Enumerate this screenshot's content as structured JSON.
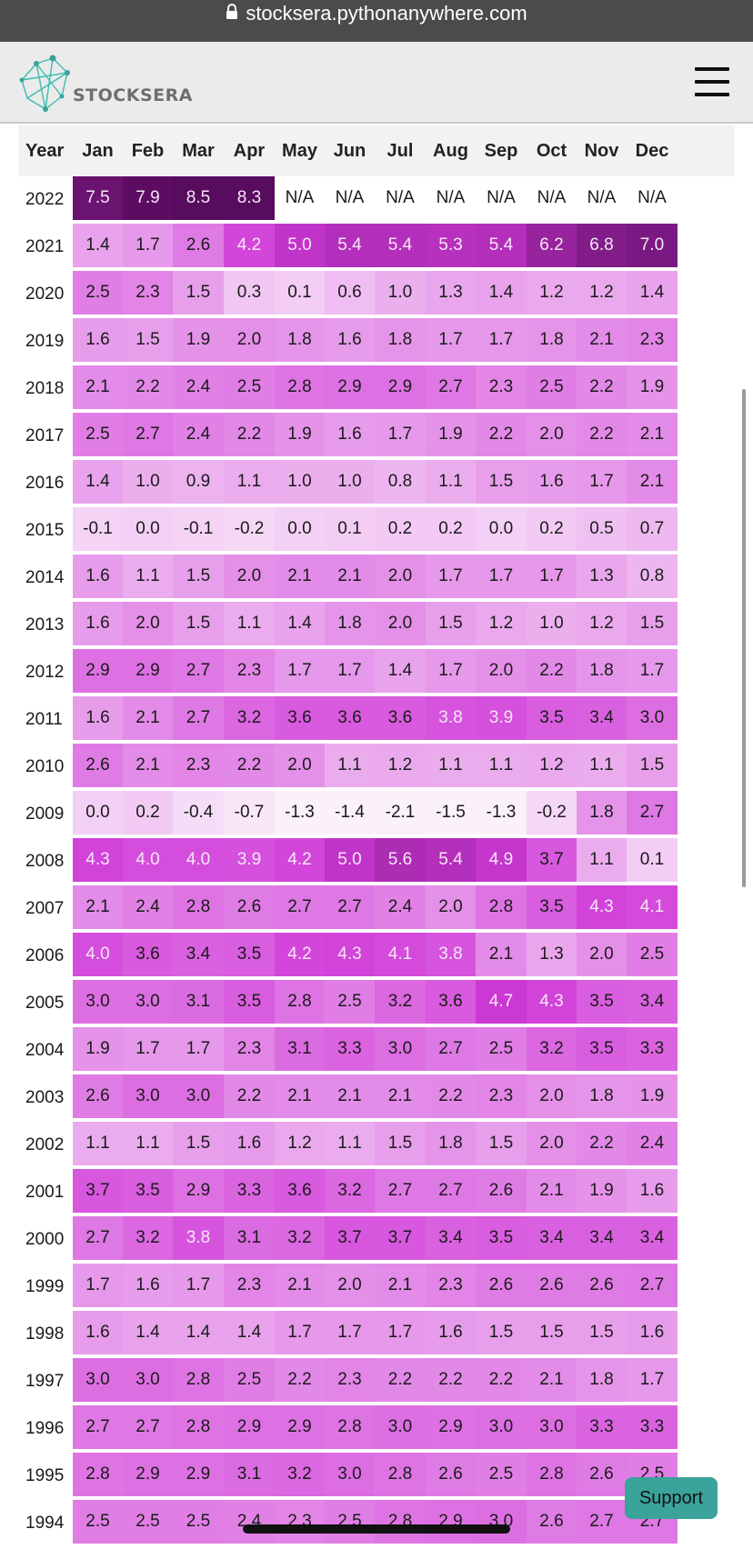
{
  "browser": {
    "url": "stocksera.pythonanywhere.com"
  },
  "header": {
    "logo_text": "STOCKSERA"
  },
  "table": {
    "headers": [
      "Year",
      "Jan",
      "Feb",
      "Mar",
      "Apr",
      "May",
      "Jun",
      "Jul",
      "Aug",
      "Sep",
      "Oct",
      "Nov",
      "Dec"
    ],
    "rows": [
      {
        "year": "2022",
        "values": [
          "7.5",
          "7.9",
          "8.5",
          "8.3",
          "N/A",
          "N/A",
          "N/A",
          "N/A",
          "N/A",
          "N/A",
          "N/A",
          "N/A"
        ]
      },
      {
        "year": "2021",
        "values": [
          "1.4",
          "1.7",
          "2.6",
          "4.2",
          "5.0",
          "5.4",
          "5.4",
          "5.3",
          "5.4",
          "6.2",
          "6.8",
          "7.0"
        ]
      },
      {
        "year": "2020",
        "values": [
          "2.5",
          "2.3",
          "1.5",
          "0.3",
          "0.1",
          "0.6",
          "1.0",
          "1.3",
          "1.4",
          "1.2",
          "1.2",
          "1.4"
        ]
      },
      {
        "year": "2019",
        "values": [
          "1.6",
          "1.5",
          "1.9",
          "2.0",
          "1.8",
          "1.6",
          "1.8",
          "1.7",
          "1.7",
          "1.8",
          "2.1",
          "2.3"
        ]
      },
      {
        "year": "2018",
        "values": [
          "2.1",
          "2.2",
          "2.4",
          "2.5",
          "2.8",
          "2.9",
          "2.9",
          "2.7",
          "2.3",
          "2.5",
          "2.2",
          "1.9"
        ]
      },
      {
        "year": "2017",
        "values": [
          "2.5",
          "2.7",
          "2.4",
          "2.2",
          "1.9",
          "1.6",
          "1.7",
          "1.9",
          "2.2",
          "2.0",
          "2.2",
          "2.1"
        ]
      },
      {
        "year": "2016",
        "values": [
          "1.4",
          "1.0",
          "0.9",
          "1.1",
          "1.0",
          "1.0",
          "0.8",
          "1.1",
          "1.5",
          "1.6",
          "1.7",
          "2.1"
        ]
      },
      {
        "year": "2015",
        "values": [
          "-0.1",
          "0.0",
          "-0.1",
          "-0.2",
          "0.0",
          "0.1",
          "0.2",
          "0.2",
          "0.0",
          "0.2",
          "0.5",
          "0.7"
        ]
      },
      {
        "year": "2014",
        "values": [
          "1.6",
          "1.1",
          "1.5",
          "2.0",
          "2.1",
          "2.1",
          "2.0",
          "1.7",
          "1.7",
          "1.7",
          "1.3",
          "0.8"
        ]
      },
      {
        "year": "2013",
        "values": [
          "1.6",
          "2.0",
          "1.5",
          "1.1",
          "1.4",
          "1.8",
          "2.0",
          "1.5",
          "1.2",
          "1.0",
          "1.2",
          "1.5"
        ]
      },
      {
        "year": "2012",
        "values": [
          "2.9",
          "2.9",
          "2.7",
          "2.3",
          "1.7",
          "1.7",
          "1.4",
          "1.7",
          "2.0",
          "2.2",
          "1.8",
          "1.7"
        ]
      },
      {
        "year": "2011",
        "values": [
          "1.6",
          "2.1",
          "2.7",
          "3.2",
          "3.6",
          "3.6",
          "3.6",
          "3.8",
          "3.9",
          "3.5",
          "3.4",
          "3.0"
        ]
      },
      {
        "year": "2010",
        "values": [
          "2.6",
          "2.1",
          "2.3",
          "2.2",
          "2.0",
          "1.1",
          "1.2",
          "1.1",
          "1.1",
          "1.2",
          "1.1",
          "1.5"
        ]
      },
      {
        "year": "2009",
        "values": [
          "0.0",
          "0.2",
          "-0.4",
          "-0.7",
          "-1.3",
          "-1.4",
          "-2.1",
          "-1.5",
          "-1.3",
          "-0.2",
          "1.8",
          "2.7"
        ]
      },
      {
        "year": "2008",
        "values": [
          "4.3",
          "4.0",
          "4.0",
          "3.9",
          "4.2",
          "5.0",
          "5.6",
          "5.4",
          "4.9",
          "3.7",
          "1.1",
          "0.1"
        ]
      },
      {
        "year": "2007",
        "values": [
          "2.1",
          "2.4",
          "2.8",
          "2.6",
          "2.7",
          "2.7",
          "2.4",
          "2.0",
          "2.8",
          "3.5",
          "4.3",
          "4.1"
        ]
      },
      {
        "year": "2006",
        "values": [
          "4.0",
          "3.6",
          "3.4",
          "3.5",
          "4.2",
          "4.3",
          "4.1",
          "3.8",
          "2.1",
          "1.3",
          "2.0",
          "2.5"
        ]
      },
      {
        "year": "2005",
        "values": [
          "3.0",
          "3.0",
          "3.1",
          "3.5",
          "2.8",
          "2.5",
          "3.2",
          "3.6",
          "4.7",
          "4.3",
          "3.5",
          "3.4"
        ]
      },
      {
        "year": "2004",
        "values": [
          "1.9",
          "1.7",
          "1.7",
          "2.3",
          "3.1",
          "3.3",
          "3.0",
          "2.7",
          "2.5",
          "3.2",
          "3.5",
          "3.3"
        ]
      },
      {
        "year": "2003",
        "values": [
          "2.6",
          "3.0",
          "3.0",
          "2.2",
          "2.1",
          "2.1",
          "2.1",
          "2.2",
          "2.3",
          "2.0",
          "1.8",
          "1.9"
        ]
      },
      {
        "year": "2002",
        "values": [
          "1.1",
          "1.1",
          "1.5",
          "1.6",
          "1.2",
          "1.1",
          "1.5",
          "1.8",
          "1.5",
          "2.0",
          "2.2",
          "2.4"
        ]
      },
      {
        "year": "2001",
        "values": [
          "3.7",
          "3.5",
          "2.9",
          "3.3",
          "3.6",
          "3.2",
          "2.7",
          "2.7",
          "2.6",
          "2.1",
          "1.9",
          "1.6"
        ]
      },
      {
        "year": "2000",
        "values": [
          "2.7",
          "3.2",
          "3.8",
          "3.1",
          "3.2",
          "3.7",
          "3.7",
          "3.4",
          "3.5",
          "3.4",
          "3.4",
          "3.4"
        ]
      },
      {
        "year": "1999",
        "values": [
          "1.7",
          "1.6",
          "1.7",
          "2.3",
          "2.1",
          "2.0",
          "2.1",
          "2.3",
          "2.6",
          "2.6",
          "2.6",
          "2.7"
        ]
      },
      {
        "year": "1998",
        "values": [
          "1.6",
          "1.4",
          "1.4",
          "1.4",
          "1.7",
          "1.7",
          "1.7",
          "1.6",
          "1.5",
          "1.5",
          "1.5",
          "1.6"
        ]
      },
      {
        "year": "1997",
        "values": [
          "3.0",
          "3.0",
          "2.8",
          "2.5",
          "2.2",
          "2.3",
          "2.2",
          "2.2",
          "2.2",
          "2.1",
          "1.8",
          "1.7"
        ]
      },
      {
        "year": "1996",
        "values": [
          "2.7",
          "2.7",
          "2.8",
          "2.9",
          "2.9",
          "2.8",
          "3.0",
          "2.9",
          "3.0",
          "3.0",
          "3.3",
          "3.3"
        ]
      },
      {
        "year": "1995",
        "values": [
          "2.8",
          "2.9",
          "2.9",
          "3.1",
          "3.2",
          "3.0",
          "2.8",
          "2.6",
          "2.5",
          "2.8",
          "2.6",
          "2.5"
        ]
      },
      {
        "year": "1994",
        "values": [
          "2.5",
          "2.5",
          "2.5",
          "2.4",
          "2.3",
          "2.5",
          "2.8",
          "2.9",
          "3.0",
          "2.6",
          "2.7",
          "2.7"
        ]
      }
    ]
  },
  "support_button": {
    "label": "Support"
  },
  "colors": {
    "accent": "#3aa39a",
    "heat_low": "#fbf1fb",
    "heat_high": "#5a0d5e"
  }
}
